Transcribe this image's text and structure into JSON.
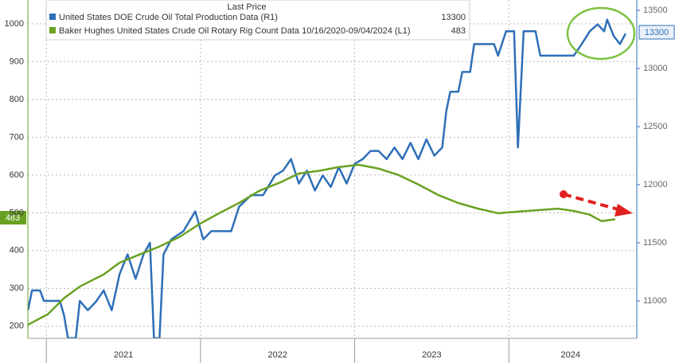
{
  "chart_data": {
    "type": "line",
    "title": "Last Price",
    "xlim": [
      2020.88,
      2024.83
    ],
    "xticks": [
      2021,
      2022,
      2023,
      2024
    ],
    "xtick_labels": [
      {
        "value": 2021.5,
        "label": "2021"
      },
      {
        "value": 2022.5,
        "label": "2022"
      },
      {
        "value": 2023.5,
        "label": "2023"
      },
      {
        "value": 2024.4,
        "label": "2024"
      }
    ],
    "ylim": [
      168,
      1063
    ],
    "yticks": [
      200,
      300,
      400,
      500,
      600,
      700,
      800,
      900,
      1000
    ],
    "y2lim": [
      10678,
      13589
    ],
    "y2ticks": [
      11000,
      11500,
      12000,
      12500,
      13000,
      13500
    ],
    "grid": true,
    "series": [
      {
        "name": "United States DOE Crude Oil Total Production Data  (R1)",
        "color": "#2e6fb7",
        "axis": "y2",
        "x": [
          2020.881,
          2020.907,
          2020.959,
          2020.984,
          2021.088,
          2021.114,
          2021.14,
          2021.191,
          2021.217,
          2021.269,
          2021.32,
          2021.372,
          2021.424,
          2021.475,
          2021.527,
          2021.579,
          2021.63,
          2021.672,
          2021.698,
          2021.734,
          2021.76,
          2021.811,
          2021.889,
          2021.966,
          2022.018,
          2022.07,
          2022.199,
          2022.25,
          2022.328,
          2022.406,
          2022.483,
          2022.535,
          2022.587,
          2022.638,
          2022.69,
          2022.742,
          2022.793,
          2022.845,
          2022.897,
          2022.948,
          2023.0,
          2023.052,
          2023.103,
          2023.155,
          2023.207,
          2023.258,
          2023.31,
          2023.362,
          2023.413,
          2023.465,
          2023.517,
          2023.568,
          2023.594,
          2023.62,
          2023.672,
          2023.698,
          2023.749,
          2023.775,
          2023.904,
          2023.93,
          2023.982,
          2024.034,
          2024.059,
          2024.096,
          2024.173,
          2024.204,
          2024.421,
          2024.473,
          2024.525,
          2024.576,
          2024.618,
          2024.638,
          2024.68,
          2024.721,
          2024.757
        ],
        "values": [
          10920,
          11090,
          11090,
          11000,
          11000,
          10880,
          10680,
          10680,
          11000,
          10920,
          10990,
          11090,
          10920,
          11230,
          11400,
          11190,
          11400,
          11500,
          10680,
          10680,
          11400,
          11530,
          11600,
          11770,
          11530,
          11600,
          11600,
          11810,
          11910,
          11910,
          12080,
          12120,
          12220,
          12010,
          12120,
          11950,
          12080,
          11980,
          12150,
          12010,
          12180,
          12220,
          12290,
          12290,
          12220,
          12320,
          12220,
          12360,
          12220,
          12390,
          12250,
          12320,
          12630,
          12800,
          12800,
          12970,
          12970,
          13210,
          13210,
          13110,
          13320,
          13320,
          12320,
          13320,
          13320,
          13110,
          13110,
          13210,
          13320,
          13380,
          13320,
          13420,
          13280,
          13210,
          13300
        ]
      },
      {
        "name": "Baker Hughes United States Crude Oil Rotary Rig Count Data 10/16/2020-09/04/2024   (L1)",
        "color": "#6aa121",
        "x": [
          2020.881,
          2021.01,
          2021.114,
          2021.217,
          2021.372,
          2021.475,
          2021.63,
          2021.734,
          2021.863,
          2021.992,
          2022.121,
          2022.25,
          2022.38,
          2022.509,
          2022.638,
          2022.767,
          2022.897,
          2023.026,
          2023.155,
          2023.284,
          2023.413,
          2023.543,
          2023.672,
          2023.801,
          2023.93,
          2024.059,
          2024.189,
          2024.318,
          2024.421,
          2024.525,
          2024.602,
          2024.69
        ],
        "values": [
          204,
          232,
          274,
          305,
          337,
          368,
          394,
          411,
          436,
          470,
          499,
          526,
          558,
          579,
          604,
          611,
          621,
          627,
          617,
          600,
          575,
          547,
          526,
          511,
          499,
          503,
          507,
          511,
          505,
          495,
          478,
          483
        ]
      }
    ]
  }
}
